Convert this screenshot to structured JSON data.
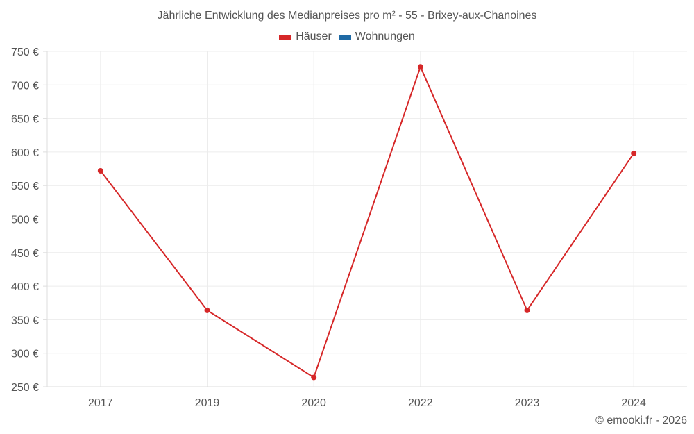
{
  "title": "Jährliche Entwicklung des Medianpreises pro m² - 55 - Brixey-aux-Chanoines",
  "legend": [
    {
      "label": "Häuser",
      "color": "#d62728"
    },
    {
      "label": "Wohnungen",
      "color": "#1f6aa5"
    }
  ],
  "footer": "© emooki.fr - 2026",
  "chart_data": {
    "type": "line",
    "title": "Jährliche Entwicklung des Medianpreises pro m² - 55 - Brixey-aux-Chanoines",
    "xlabel": "",
    "ylabel": "",
    "categories": [
      "2017",
      "2019",
      "2020",
      "2022",
      "2023",
      "2024"
    ],
    "series": [
      {
        "name": "Häuser",
        "color": "#d62728",
        "values": [
          572,
          364,
          264,
          727,
          364,
          598
        ]
      },
      {
        "name": "Wohnungen",
        "color": "#1f6aa5",
        "values": []
      }
    ],
    "ylim": [
      250,
      750
    ],
    "yticks": [
      250,
      300,
      350,
      400,
      450,
      500,
      550,
      600,
      650,
      700,
      750
    ],
    "ytick_suffix": " €",
    "grid": true,
    "legend_position": "top"
  }
}
